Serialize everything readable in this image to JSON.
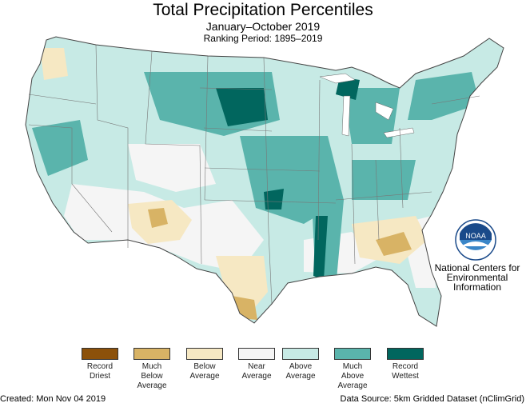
{
  "header": {
    "title": "Total Precipitation Percentiles",
    "subtitle": "January–October 2019",
    "ranking": "Ranking Period: 1895–2019"
  },
  "legend": [
    {
      "line1": "Record",
      "line2": "Driest",
      "line3": "",
      "color": "#8c510a"
    },
    {
      "line1": "Much",
      "line2": "Below",
      "line3": "Average",
      "color": "#d8b365"
    },
    {
      "line1": "Below",
      "line2": "Average",
      "line3": "",
      "color": "#f6e8c3"
    },
    {
      "line1": "Near",
      "line2": "Average",
      "line3": "",
      "color": "#f5f5f5"
    },
    {
      "line1": "Above",
      "line2": "Average",
      "line3": "",
      "color": "#c7eae5"
    },
    {
      "line1": "Much",
      "line2": "Above",
      "line3": "Average",
      "color": "#5ab4ac"
    },
    {
      "line1": "Record",
      "line2": "Wettest",
      "line3": "",
      "color": "#01665e"
    }
  ],
  "organization": {
    "logo_text": "NOAA",
    "line1": "National Centers for",
    "line2": "Environmental",
    "line3": "Information"
  },
  "footer": {
    "created": "Created: Mon Nov 04 2019",
    "source": "Data Source: 5km Gridded Dataset (nClimGrid)"
  },
  "icons": {
    "logo": "noaa-logo-icon"
  }
}
